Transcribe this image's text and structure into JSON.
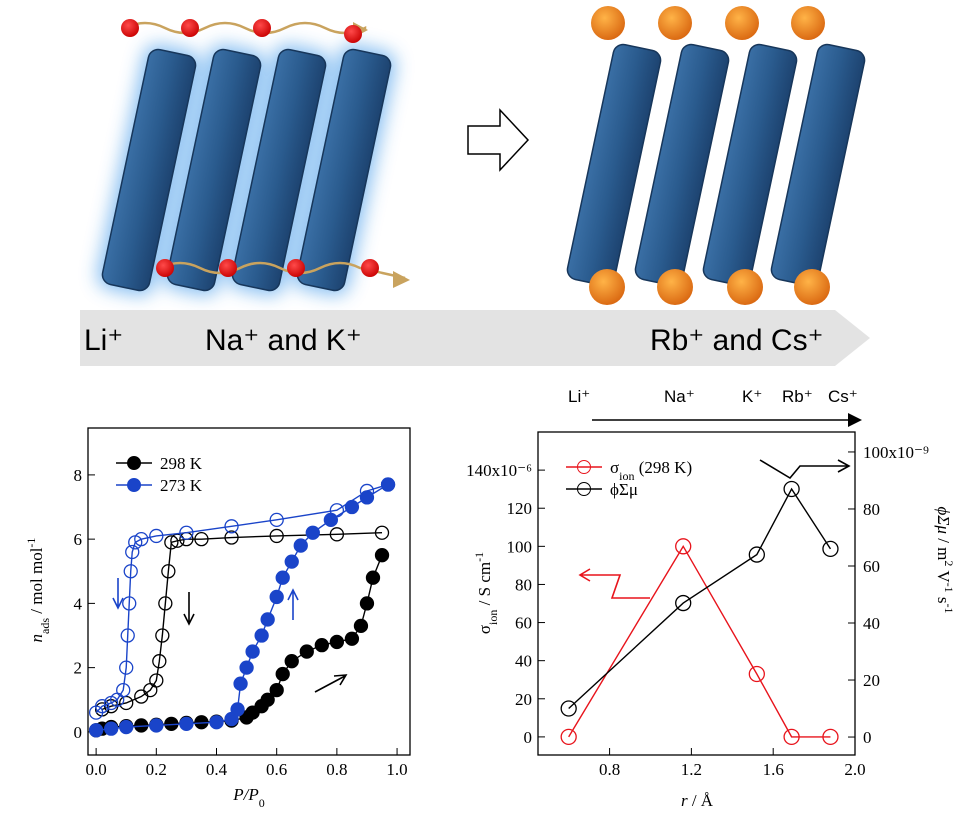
{
  "diagram": {
    "labels": [
      "Li⁺",
      "Na⁺ and K⁺",
      "Rb⁺ and Cs⁺"
    ]
  },
  "chart_data": [
    {
      "type": "line",
      "xlabel": [
        {
          "text": "P/P",
          "style": "italic"
        },
        {
          "text": "0",
          "style": "sub"
        }
      ],
      "ylabel": [
        {
          "text": "n",
          "style": "italic"
        },
        {
          "text": "ads",
          "style": "sub"
        },
        {
          "text": " / mol mol"
        },
        {
          "text": "-1",
          "style": "sup"
        }
      ],
      "xlim": [
        -0.027,
        1.043
      ],
      "xticks": [
        {
          "value": 0,
          "label": "0.0"
        },
        0.2,
        0.4,
        0.6,
        0.8,
        {
          "value": 1,
          "label": "1.0"
        }
      ],
      "ylim": [
        -0.72,
        9.46
      ],
      "yticks": [
        0,
        2,
        4,
        6,
        8
      ],
      "legend": "upper left",
      "series": [
        {
          "name": "298 K",
          "color": "#000000",
          "branches": [
            {
              "filled": true,
              "x": [
                0.0,
                0.02,
                0.05,
                0.1,
                0.15,
                0.2,
                0.25,
                0.3,
                0.35,
                0.4,
                0.45,
                0.5,
                0.52,
                0.55,
                0.57,
                0.6,
                0.62,
                0.65,
                0.7,
                0.75,
                0.8,
                0.85,
                0.88,
                0.9,
                0.92,
                0.95
              ],
              "values": [
                0.05,
                0.1,
                0.15,
                0.18,
                0.2,
                0.22,
                0.25,
                0.28,
                0.3,
                0.32,
                0.35,
                0.45,
                0.6,
                0.8,
                1.0,
                1.3,
                1.8,
                2.2,
                2.5,
                2.7,
                2.8,
                2.9,
                3.3,
                4.0,
                4.8,
                5.5
              ]
            },
            {
              "filled": false,
              "x": [
                0.95,
                0.8,
                0.6,
                0.45,
                0.35,
                0.3,
                0.27,
                0.25,
                0.24,
                0.23,
                0.22,
                0.21,
                0.2,
                0.18,
                0.15,
                0.1,
                0.05,
                0.02
              ],
              "values": [
                6.2,
                6.15,
                6.1,
                6.05,
                6.0,
                6.0,
                5.95,
                5.9,
                5.0,
                4.0,
                3.0,
                2.2,
                1.6,
                1.3,
                1.1,
                0.9,
                0.8,
                0.7
              ]
            }
          ]
        },
        {
          "name": "273 K",
          "color": "#1a44c9",
          "branches": [
            {
              "filled": true,
              "x": [
                0.0,
                0.05,
                0.1,
                0.2,
                0.3,
                0.4,
                0.45,
                0.47,
                0.48,
                0.5,
                0.52,
                0.55,
                0.57,
                0.6,
                0.62,
                0.65,
                0.68,
                0.72,
                0.78,
                0.85,
                0.9,
                0.97
              ],
              "values": [
                0.05,
                0.1,
                0.15,
                0.2,
                0.25,
                0.3,
                0.4,
                0.7,
                1.5,
                2.0,
                2.5,
                3.0,
                3.5,
                4.2,
                4.8,
                5.3,
                5.8,
                6.2,
                6.6,
                7.0,
                7.3,
                7.7
              ]
            },
            {
              "filled": false,
              "x": [
                0.97,
                0.9,
                0.8,
                0.6,
                0.45,
                0.3,
                0.2,
                0.15,
                0.13,
                0.12,
                0.115,
                0.11,
                0.105,
                0.1,
                0.09,
                0.07,
                0.05,
                0.02,
                0.0
              ],
              "values": [
                7.7,
                7.5,
                6.9,
                6.6,
                6.4,
                6.2,
                6.1,
                6.0,
                5.9,
                5.6,
                5.0,
                4.0,
                3.0,
                2.0,
                1.3,
                1.0,
                0.9,
                0.8,
                0.6
              ]
            }
          ]
        }
      ]
    },
    {
      "type": "line",
      "top_labels": [
        "Li⁺",
        "Na⁺",
        "K⁺",
        "Rb⁺",
        "Cs⁺"
      ],
      "xlabel": [
        {
          "text": "r",
          "style": "italic"
        },
        {
          "text": " / Å"
        }
      ],
      "ylabel": [
        {
          "text": "σ"
        },
        {
          "text": "ion",
          "style": "sub"
        },
        {
          "text": " / S cm"
        },
        {
          "text": "-1",
          "style": "sup"
        }
      ],
      "y2label": [
        {
          "text": "ϕΣμ",
          "style": "italic"
        },
        {
          "text": " / m"
        },
        {
          "text": "2",
          "style": "sup"
        },
        {
          "text": " V"
        },
        {
          "text": "-1",
          "style": "sup"
        },
        {
          "text": " s"
        },
        {
          "text": "-1",
          "style": "sup"
        }
      ],
      "xlim": [
        0.45,
        2.0
      ],
      "xticks": [
        0.8,
        1.2,
        1.6,
        {
          "value": 2,
          "label": "2.0"
        }
      ],
      "ylim": [
        -9.5,
        160
      ],
      "yticks": [
        0,
        20,
        40,
        60,
        80,
        100,
        120,
        {
          "value": 140,
          "label": "140x10⁻⁶"
        }
      ],
      "y2lim": [
        -6.3,
        107
      ],
      "y2ticks": [
        0,
        20,
        40,
        60,
        80,
        {
          "value": 100,
          "label": "100x10⁻⁹"
        }
      ],
      "legend": "upper left",
      "x": [
        0.6,
        1.16,
        1.52,
        1.69,
        1.88
      ],
      "series": [
        {
          "name": [
            {
              "text": "σ"
            },
            {
              "text": "ion",
              "style": "sub"
            },
            {
              "text": " (298 K)"
            }
          ],
          "color": "#e8141c",
          "values": [
            0,
            100,
            33,
            0,
            0
          ]
        },
        {
          "name": [
            {
              "text": "ϕΣμ"
            }
          ],
          "color": "#000000",
          "axis": "y2",
          "values": [
            10,
            47,
            64,
            87,
            66
          ]
        }
      ]
    }
  ]
}
